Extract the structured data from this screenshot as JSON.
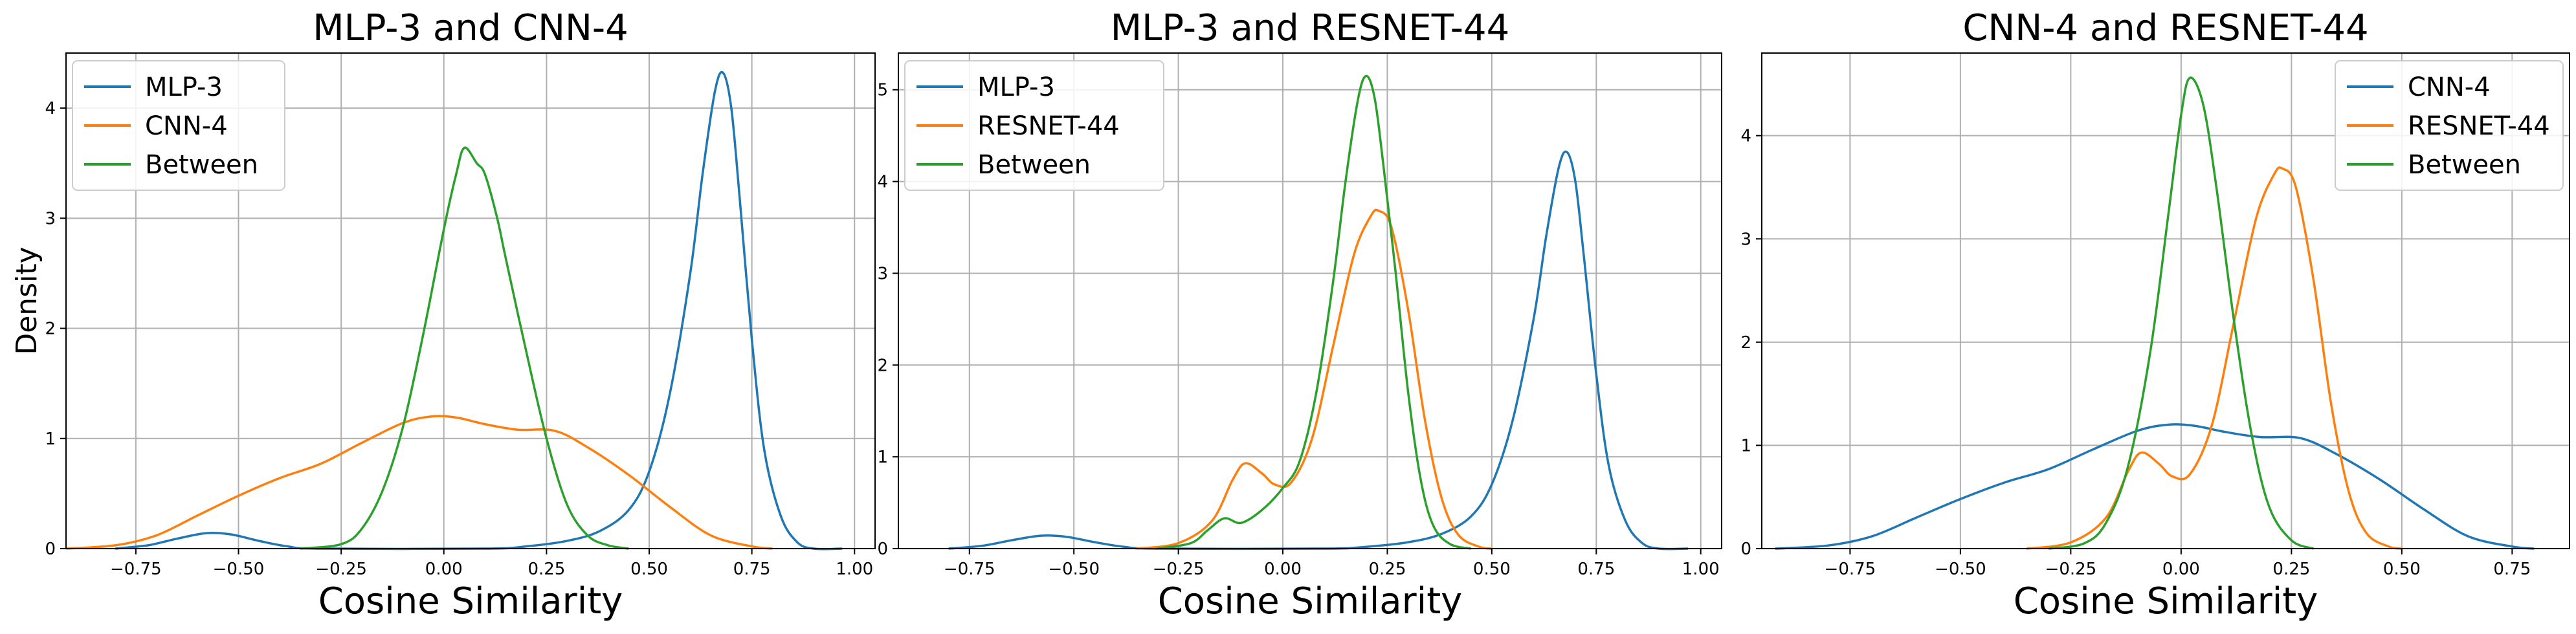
{
  "chart_data": [
    {
      "type": "line",
      "title": "MLP-3 and CNN-4",
      "xlabel": "Cosine Similarity",
      "ylabel": "Density",
      "xlim": [
        -0.92,
        1.05
      ],
      "ylim": [
        0,
        4.5
      ],
      "xticks": [
        "−0.75",
        "−0.50",
        "−0.25",
        "0.00",
        "0.25",
        "0.50",
        "0.75",
        "1.00"
      ],
      "xtick_values": [
        -0.75,
        -0.5,
        -0.25,
        0.0,
        0.25,
        0.5,
        0.75,
        1.0
      ],
      "yticks": [
        "0",
        "1",
        "2",
        "3",
        "4"
      ],
      "ytick_values": [
        0,
        1,
        2,
        3,
        4
      ],
      "grid": true,
      "legend_position": "top-left",
      "series": [
        {
          "name": "MLP-3",
          "color": "#1f77b4",
          "points": [
            [
              -0.8,
              0.0
            ],
            [
              -0.72,
              0.03
            ],
            [
              -0.65,
              0.09
            ],
            [
              -0.58,
              0.14
            ],
            [
              -0.52,
              0.13
            ],
            [
              -0.45,
              0.07
            ],
            [
              -0.38,
              0.02
            ],
            [
              -0.3,
              0.0
            ],
            [
              0.1,
              0.0
            ],
            [
              0.2,
              0.02
            ],
            [
              0.3,
              0.07
            ],
            [
              0.38,
              0.16
            ],
            [
              0.45,
              0.35
            ],
            [
              0.5,
              0.7
            ],
            [
              0.55,
              1.4
            ],
            [
              0.6,
              2.5
            ],
            [
              0.63,
              3.4
            ],
            [
              0.66,
              4.15
            ],
            [
              0.68,
              4.32
            ],
            [
              0.7,
              4.0
            ],
            [
              0.72,
              3.2
            ],
            [
              0.75,
              1.9
            ],
            [
              0.78,
              0.9
            ],
            [
              0.82,
              0.3
            ],
            [
              0.86,
              0.06
            ],
            [
              0.9,
              0.0
            ],
            [
              0.97,
              0.0
            ]
          ]
        },
        {
          "name": "CNN-4",
          "color": "#ff7f0e",
          "points": [
            [
              -0.92,
              0.0
            ],
            [
              -0.8,
              0.03
            ],
            [
              -0.7,
              0.12
            ],
            [
              -0.6,
              0.3
            ],
            [
              -0.5,
              0.48
            ],
            [
              -0.4,
              0.64
            ],
            [
              -0.3,
              0.77
            ],
            [
              -0.2,
              0.96
            ],
            [
              -0.1,
              1.14
            ],
            [
              -0.03,
              1.2
            ],
            [
              0.03,
              1.19
            ],
            [
              0.1,
              1.13
            ],
            [
              0.18,
              1.08
            ],
            [
              0.27,
              1.07
            ],
            [
              0.35,
              0.92
            ],
            [
              0.45,
              0.67
            ],
            [
              0.55,
              0.38
            ],
            [
              0.65,
              0.12
            ],
            [
              0.75,
              0.02
            ],
            [
              0.8,
              0.0
            ]
          ]
        },
        {
          "name": "Between",
          "color": "#2ca02c",
          "points": [
            [
              -0.35,
              0.0
            ],
            [
              -0.25,
              0.04
            ],
            [
              -0.2,
              0.18
            ],
            [
              -0.15,
              0.52
            ],
            [
              -0.1,
              1.1
            ],
            [
              -0.05,
              1.95
            ],
            [
              0.0,
              2.9
            ],
            [
              0.03,
              3.4
            ],
            [
              0.05,
              3.64
            ],
            [
              0.08,
              3.5
            ],
            [
              0.1,
              3.4
            ],
            [
              0.13,
              3.0
            ],
            [
              0.15,
              2.65
            ],
            [
              0.2,
              1.8
            ],
            [
              0.25,
              1.0
            ],
            [
              0.3,
              0.4
            ],
            [
              0.35,
              0.12
            ],
            [
              0.4,
              0.03
            ],
            [
              0.45,
              0.0
            ]
          ]
        }
      ]
    },
    {
      "type": "line",
      "title": "MLP-3 and RESNET-44",
      "xlabel": "Cosine Similarity",
      "ylabel": "",
      "xlim": [
        -0.92,
        1.05
      ],
      "ylim": [
        0,
        5.4
      ],
      "xticks": [
        "−0.75",
        "−0.50",
        "−0.25",
        "0.00",
        "0.25",
        "0.50",
        "0.75",
        "1.00"
      ],
      "xtick_values": [
        -0.75,
        -0.5,
        -0.25,
        0.0,
        0.25,
        0.5,
        0.75,
        1.0
      ],
      "yticks": [
        "0",
        "1",
        "2",
        "3",
        "4",
        "5"
      ],
      "ytick_values": [
        0,
        1,
        2,
        3,
        4,
        5
      ],
      "grid": true,
      "legend_position": "top-left",
      "series": [
        {
          "name": "MLP-3",
          "color": "#1f77b4",
          "points": [
            [
              -0.8,
              0.0
            ],
            [
              -0.72,
              0.03
            ],
            [
              -0.65,
              0.09
            ],
            [
              -0.58,
              0.14
            ],
            [
              -0.52,
              0.13
            ],
            [
              -0.45,
              0.07
            ],
            [
              -0.38,
              0.02
            ],
            [
              -0.3,
              0.0
            ],
            [
              0.1,
              0.0
            ],
            [
              0.2,
              0.02
            ],
            [
              0.3,
              0.07
            ],
            [
              0.38,
              0.16
            ],
            [
              0.45,
              0.35
            ],
            [
              0.5,
              0.7
            ],
            [
              0.55,
              1.4
            ],
            [
              0.6,
              2.5
            ],
            [
              0.63,
              3.4
            ],
            [
              0.66,
              4.15
            ],
            [
              0.68,
              4.32
            ],
            [
              0.7,
              4.0
            ],
            [
              0.72,
              3.2
            ],
            [
              0.75,
              1.9
            ],
            [
              0.78,
              0.9
            ],
            [
              0.82,
              0.3
            ],
            [
              0.86,
              0.06
            ],
            [
              0.9,
              0.0
            ],
            [
              0.97,
              0.0
            ]
          ]
        },
        {
          "name": "RESNET-44",
          "color": "#ff7f0e",
          "points": [
            [
              -0.35,
              0.0
            ],
            [
              -0.25,
              0.06
            ],
            [
              -0.17,
              0.3
            ],
            [
              -0.12,
              0.75
            ],
            [
              -0.09,
              0.93
            ],
            [
              -0.05,
              0.82
            ],
            [
              -0.02,
              0.7
            ],
            [
              0.02,
              0.72
            ],
            [
              0.07,
              1.2
            ],
            [
              0.12,
              2.2
            ],
            [
              0.17,
              3.2
            ],
            [
              0.21,
              3.62
            ],
            [
              0.23,
              3.68
            ],
            [
              0.26,
              3.5
            ],
            [
              0.3,
              2.6
            ],
            [
              0.34,
              1.4
            ],
            [
              0.38,
              0.55
            ],
            [
              0.42,
              0.15
            ],
            [
              0.47,
              0.02
            ],
            [
              0.5,
              0.0
            ]
          ]
        },
        {
          "name": "Between",
          "color": "#2ca02c",
          "points": [
            [
              -0.3,
              0.0
            ],
            [
              -0.22,
              0.06
            ],
            [
              -0.18,
              0.2
            ],
            [
              -0.14,
              0.33
            ],
            [
              -0.1,
              0.28
            ],
            [
              -0.05,
              0.42
            ],
            [
              0.0,
              0.66
            ],
            [
              0.04,
              0.95
            ],
            [
              0.08,
              1.7
            ],
            [
              0.12,
              2.9
            ],
            [
              0.15,
              4.0
            ],
            [
              0.18,
              4.9
            ],
            [
              0.2,
              5.15
            ],
            [
              0.22,
              4.9
            ],
            [
              0.24,
              4.2
            ],
            [
              0.27,
              3.0
            ],
            [
              0.3,
              1.7
            ],
            [
              0.33,
              0.75
            ],
            [
              0.36,
              0.25
            ],
            [
              0.4,
              0.05
            ],
            [
              0.45,
              0.0
            ]
          ]
        }
      ]
    },
    {
      "type": "line",
      "title": "CNN-4 and RESNET-44",
      "xlabel": "Cosine Similarity",
      "ylabel": "",
      "xlim": [
        -0.95,
        0.88
      ],
      "ylim": [
        0,
        4.8
      ],
      "xticks": [
        "−0.75",
        "−0.50",
        "−0.25",
        "0.00",
        "0.25",
        "0.50",
        "0.75"
      ],
      "xtick_values": [
        -0.75,
        -0.5,
        -0.25,
        0.0,
        0.25,
        0.5,
        0.75
      ],
      "yticks": [
        "0",
        "1",
        "2",
        "3",
        "4"
      ],
      "ytick_values": [
        0,
        1,
        2,
        3,
        4
      ],
      "grid": true,
      "legend_position": "top-right",
      "series": [
        {
          "name": "CNN-4",
          "color": "#1f77b4",
          "points": [
            [
              -0.92,
              0.0
            ],
            [
              -0.8,
              0.03
            ],
            [
              -0.7,
              0.12
            ],
            [
              -0.6,
              0.3
            ],
            [
              -0.5,
              0.48
            ],
            [
              -0.4,
              0.64
            ],
            [
              -0.3,
              0.77
            ],
            [
              -0.2,
              0.96
            ],
            [
              -0.1,
              1.14
            ],
            [
              -0.03,
              1.2
            ],
            [
              0.03,
              1.19
            ],
            [
              0.1,
              1.13
            ],
            [
              0.18,
              1.08
            ],
            [
              0.27,
              1.07
            ],
            [
              0.35,
              0.92
            ],
            [
              0.45,
              0.67
            ],
            [
              0.55,
              0.38
            ],
            [
              0.65,
              0.12
            ],
            [
              0.75,
              0.02
            ],
            [
              0.8,
              0.0
            ]
          ]
        },
        {
          "name": "RESNET-44",
          "color": "#ff7f0e",
          "points": [
            [
              -0.35,
              0.0
            ],
            [
              -0.25,
              0.06
            ],
            [
              -0.17,
              0.3
            ],
            [
              -0.12,
              0.75
            ],
            [
              -0.09,
              0.93
            ],
            [
              -0.05,
              0.82
            ],
            [
              -0.02,
              0.7
            ],
            [
              0.02,
              0.72
            ],
            [
              0.07,
              1.2
            ],
            [
              0.12,
              2.2
            ],
            [
              0.17,
              3.2
            ],
            [
              0.21,
              3.62
            ],
            [
              0.23,
              3.68
            ],
            [
              0.26,
              3.5
            ],
            [
              0.3,
              2.6
            ],
            [
              0.34,
              1.4
            ],
            [
              0.38,
              0.55
            ],
            [
              0.42,
              0.15
            ],
            [
              0.47,
              0.02
            ],
            [
              0.5,
              0.0
            ]
          ]
        },
        {
          "name": "Between",
          "color": "#2ca02c",
          "points": [
            [
              -0.3,
              0.0
            ],
            [
              -0.22,
              0.05
            ],
            [
              -0.17,
              0.25
            ],
            [
              -0.12,
              0.8
            ],
            [
              -0.07,
              1.9
            ],
            [
              -0.03,
              3.2
            ],
            [
              0.0,
              4.2
            ],
            [
              0.02,
              4.56
            ],
            [
              0.05,
              4.3
            ],
            [
              0.08,
              3.5
            ],
            [
              0.12,
              2.2
            ],
            [
              0.16,
              1.1
            ],
            [
              0.2,
              0.4
            ],
            [
              0.25,
              0.08
            ],
            [
              0.3,
              0.0
            ]
          ]
        }
      ]
    }
  ]
}
